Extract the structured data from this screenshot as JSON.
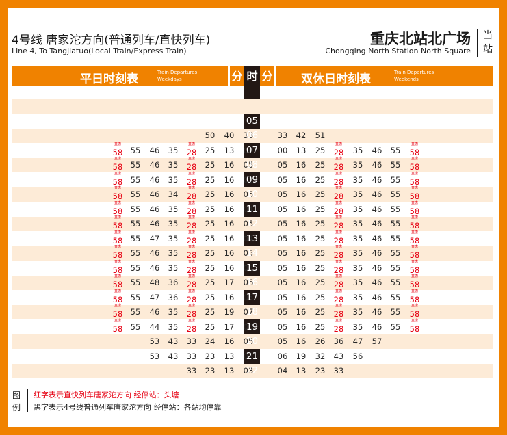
{
  "header": {
    "line_zh": "4号线 唐家沱方向(普通列车/直快列车)",
    "line_en": "Line 4, To Tangjiatuo(Local Train/Express Train)",
    "station_zh": "重庆北站北广场",
    "station_en": "Chongqing North Station North Square",
    "current_stop_zh": "当站"
  },
  "bands": {
    "weekday_zh": "平日时刻表",
    "weekday_en": "Train Departures Weekdays",
    "minute_left": "分",
    "hour": "时",
    "minute_right": "分",
    "weekend_zh": "双休日时刻表",
    "weekend_en": "Train Departures Weekends"
  },
  "express_mark": "直唐",
  "rows": [
    {
      "hour": "",
      "weekday": [],
      "weekend": []
    },
    {
      "hour": "05",
      "weekday": [],
      "weekend": []
    },
    {
      "hour": "06",
      "weekday": [
        "50",
        "40",
        "33"
      ],
      "weekend": [
        "33",
        "42",
        "51"
      ]
    },
    {
      "hour": "07",
      "weekday": [
        "58*",
        "55",
        "46",
        "35",
        "28*",
        "25",
        "13",
        "00"
      ],
      "weekend": [
        "00",
        "13",
        "25",
        "28*",
        "35",
        "46",
        "55",
        "58*"
      ]
    },
    {
      "hour": "08",
      "weekday": [
        "58*",
        "55",
        "46",
        "35",
        "28*",
        "25",
        "16",
        "05"
      ],
      "weekend": [
        "05",
        "16",
        "25",
        "28*",
        "35",
        "46",
        "55",
        "58*"
      ]
    },
    {
      "hour": "09",
      "weekday": [
        "58*",
        "55",
        "46",
        "35",
        "28*",
        "25",
        "16",
        "05"
      ],
      "weekend": [
        "05",
        "16",
        "25",
        "28*",
        "35",
        "46",
        "55",
        "58*"
      ]
    },
    {
      "hour": "10",
      "weekday": [
        "58*",
        "55",
        "46",
        "34",
        "28*",
        "25",
        "16",
        "05"
      ],
      "weekend": [
        "05",
        "16",
        "25",
        "28*",
        "35",
        "46",
        "55",
        "58*"
      ]
    },
    {
      "hour": "11",
      "weekday": [
        "58*",
        "55",
        "46",
        "35",
        "28*",
        "25",
        "16",
        "04"
      ],
      "weekend": [
        "05",
        "16",
        "25",
        "28*",
        "35",
        "46",
        "55",
        "58*"
      ]
    },
    {
      "hour": "12",
      "weekday": [
        "58*",
        "55",
        "46",
        "35",
        "28*",
        "25",
        "16",
        "05"
      ],
      "weekend": [
        "05",
        "16",
        "25",
        "28*",
        "35",
        "46",
        "55",
        "58*"
      ]
    },
    {
      "hour": "13",
      "weekday": [
        "58*",
        "55",
        "47",
        "35",
        "28*",
        "25",
        "16",
        "04"
      ],
      "weekend": [
        "05",
        "16",
        "25",
        "28*",
        "35",
        "46",
        "55",
        "58*"
      ]
    },
    {
      "hour": "14",
      "weekday": [
        "58*",
        "55",
        "46",
        "35",
        "28*",
        "25",
        "16",
        "05"
      ],
      "weekend": [
        "05",
        "16",
        "25",
        "28*",
        "35",
        "46",
        "55",
        "58*"
      ]
    },
    {
      "hour": "15",
      "weekday": [
        "58*",
        "55",
        "46",
        "35",
        "28*",
        "25",
        "16",
        "05"
      ],
      "weekend": [
        "05",
        "16",
        "25",
        "28*",
        "35",
        "46",
        "55",
        "58*"
      ]
    },
    {
      "hour": "16",
      "weekday": [
        "58*",
        "55",
        "48",
        "36",
        "28*",
        "25",
        "17",
        "06"
      ],
      "weekend": [
        "05",
        "16",
        "25",
        "28*",
        "35",
        "46",
        "55",
        "58*"
      ]
    },
    {
      "hour": "17",
      "weekday": [
        "58*",
        "55",
        "47",
        "36",
        "28*",
        "25",
        "16",
        "05"
      ],
      "weekend": [
        "05",
        "16",
        "25",
        "28*",
        "35",
        "46",
        "55",
        "58*"
      ]
    },
    {
      "hour": "18",
      "weekday": [
        "58*",
        "55",
        "46",
        "35",
        "28*",
        "25",
        "19",
        "07"
      ],
      "weekend": [
        "05",
        "16",
        "25",
        "28*",
        "35",
        "46",
        "55",
        "58*"
      ]
    },
    {
      "hour": "19",
      "weekday": [
        "58*",
        "55",
        "44",
        "35",
        "28*",
        "25",
        "17",
        "06"
      ],
      "weekend": [
        "05",
        "16",
        "25",
        "28*",
        "35",
        "46",
        "55",
        "58*"
      ]
    },
    {
      "hour": "20",
      "weekday": [
        "53",
        "43",
        "33",
        "24",
        "16",
        "05"
      ],
      "weekend": [
        "05",
        "16",
        "26",
        "36",
        "47",
        "57"
      ]
    },
    {
      "hour": "21",
      "weekday": [
        "53",
        "43",
        "33",
        "23",
        "13",
        "03"
      ],
      "weekend": [
        "06",
        "19",
        "32",
        "43",
        "56"
      ]
    },
    {
      "hour": "22",
      "weekday": [
        "33",
        "23",
        "13",
        "03"
      ],
      "weekend": [
        "04",
        "13",
        "23",
        "33"
      ]
    },
    {
      "hour": "23",
      "weekday": [],
      "weekend": []
    }
  ],
  "legend": {
    "label_1": "图",
    "label_2": "例",
    "red_desc": "红字表示直快列车唐家沱方向  经停站：头塘",
    "black_desc": "黑字表示4号线普通列车唐家沱方向  经停站：各站均停靠"
  },
  "colors": {
    "accent": "#F08200",
    "express_red": "#E60012",
    "shade": "#FDEBD7",
    "hour_column": "#231815"
  }
}
